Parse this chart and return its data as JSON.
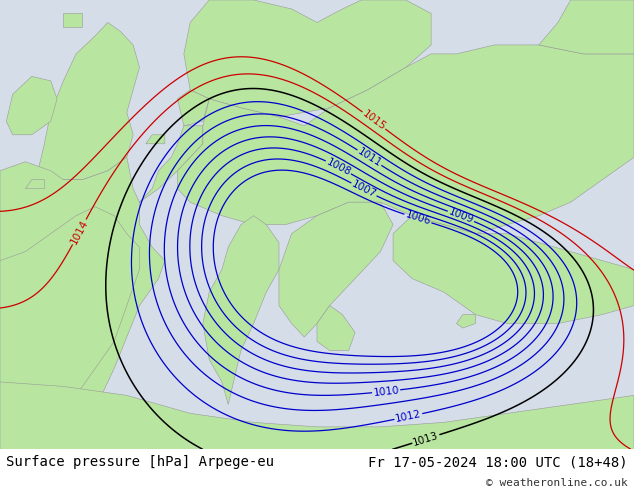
{
  "title_left": "Surface pressure [hPa] Arpege-eu",
  "title_right": "Fr 17-05-2024 18:00 UTC (18+48)",
  "copyright": "© weatheronline.co.uk",
  "land_color": "#b8e6a0",
  "sea_color": "#d4dde8",
  "footer_bg": "#ffffff",
  "footer_text_color": "#000000",
  "blue_contour_color": "#0000cc",
  "red_contour_color": "#cc0000",
  "black_contour_color": "#000000",
  "contour_label_fontsize": 7.5,
  "footer_fontsize": 10,
  "figsize": [
    6.34,
    4.9
  ],
  "dpi": 100
}
